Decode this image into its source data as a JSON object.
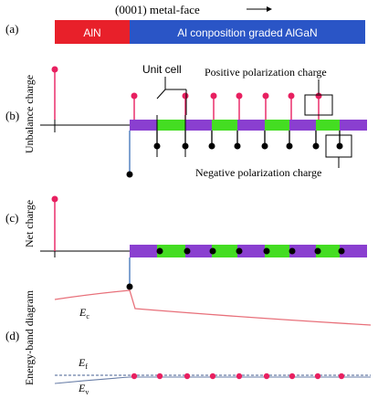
{
  "title": "(0001) metal-face",
  "layers": {
    "aln": "AlN",
    "algan": "Al conposition graded AlGaN"
  },
  "panels": {
    "a": {
      "label": "(a)"
    },
    "b": {
      "label": "(b)",
      "ylabel": "Unbalance charge",
      "annotations": {
        "unit_cell": "Unit cell",
        "positive": "Positive polarization charge",
        "negative": "Negative polarization charge"
      }
    },
    "c": {
      "label": "(c)",
      "ylabel": "Net charge"
    },
    "d": {
      "label": "(d)",
      "ylabel": "Energy-band diagram",
      "ec_main": "E",
      "ec_sub": "c",
      "ef_main": "E",
      "ef_sub": "f",
      "ev_main": "E",
      "ev_sub": "v"
    }
  },
  "colors": {
    "aln": "#e8202a",
    "algan": "#2a55c6",
    "barrier": "#8a3fd0",
    "well": "#44dd22",
    "positive_charge": "#e82060",
    "negative_charge": "#000000",
    "band": "#e8707a",
    "fermi": "#6a7fa8"
  }
}
